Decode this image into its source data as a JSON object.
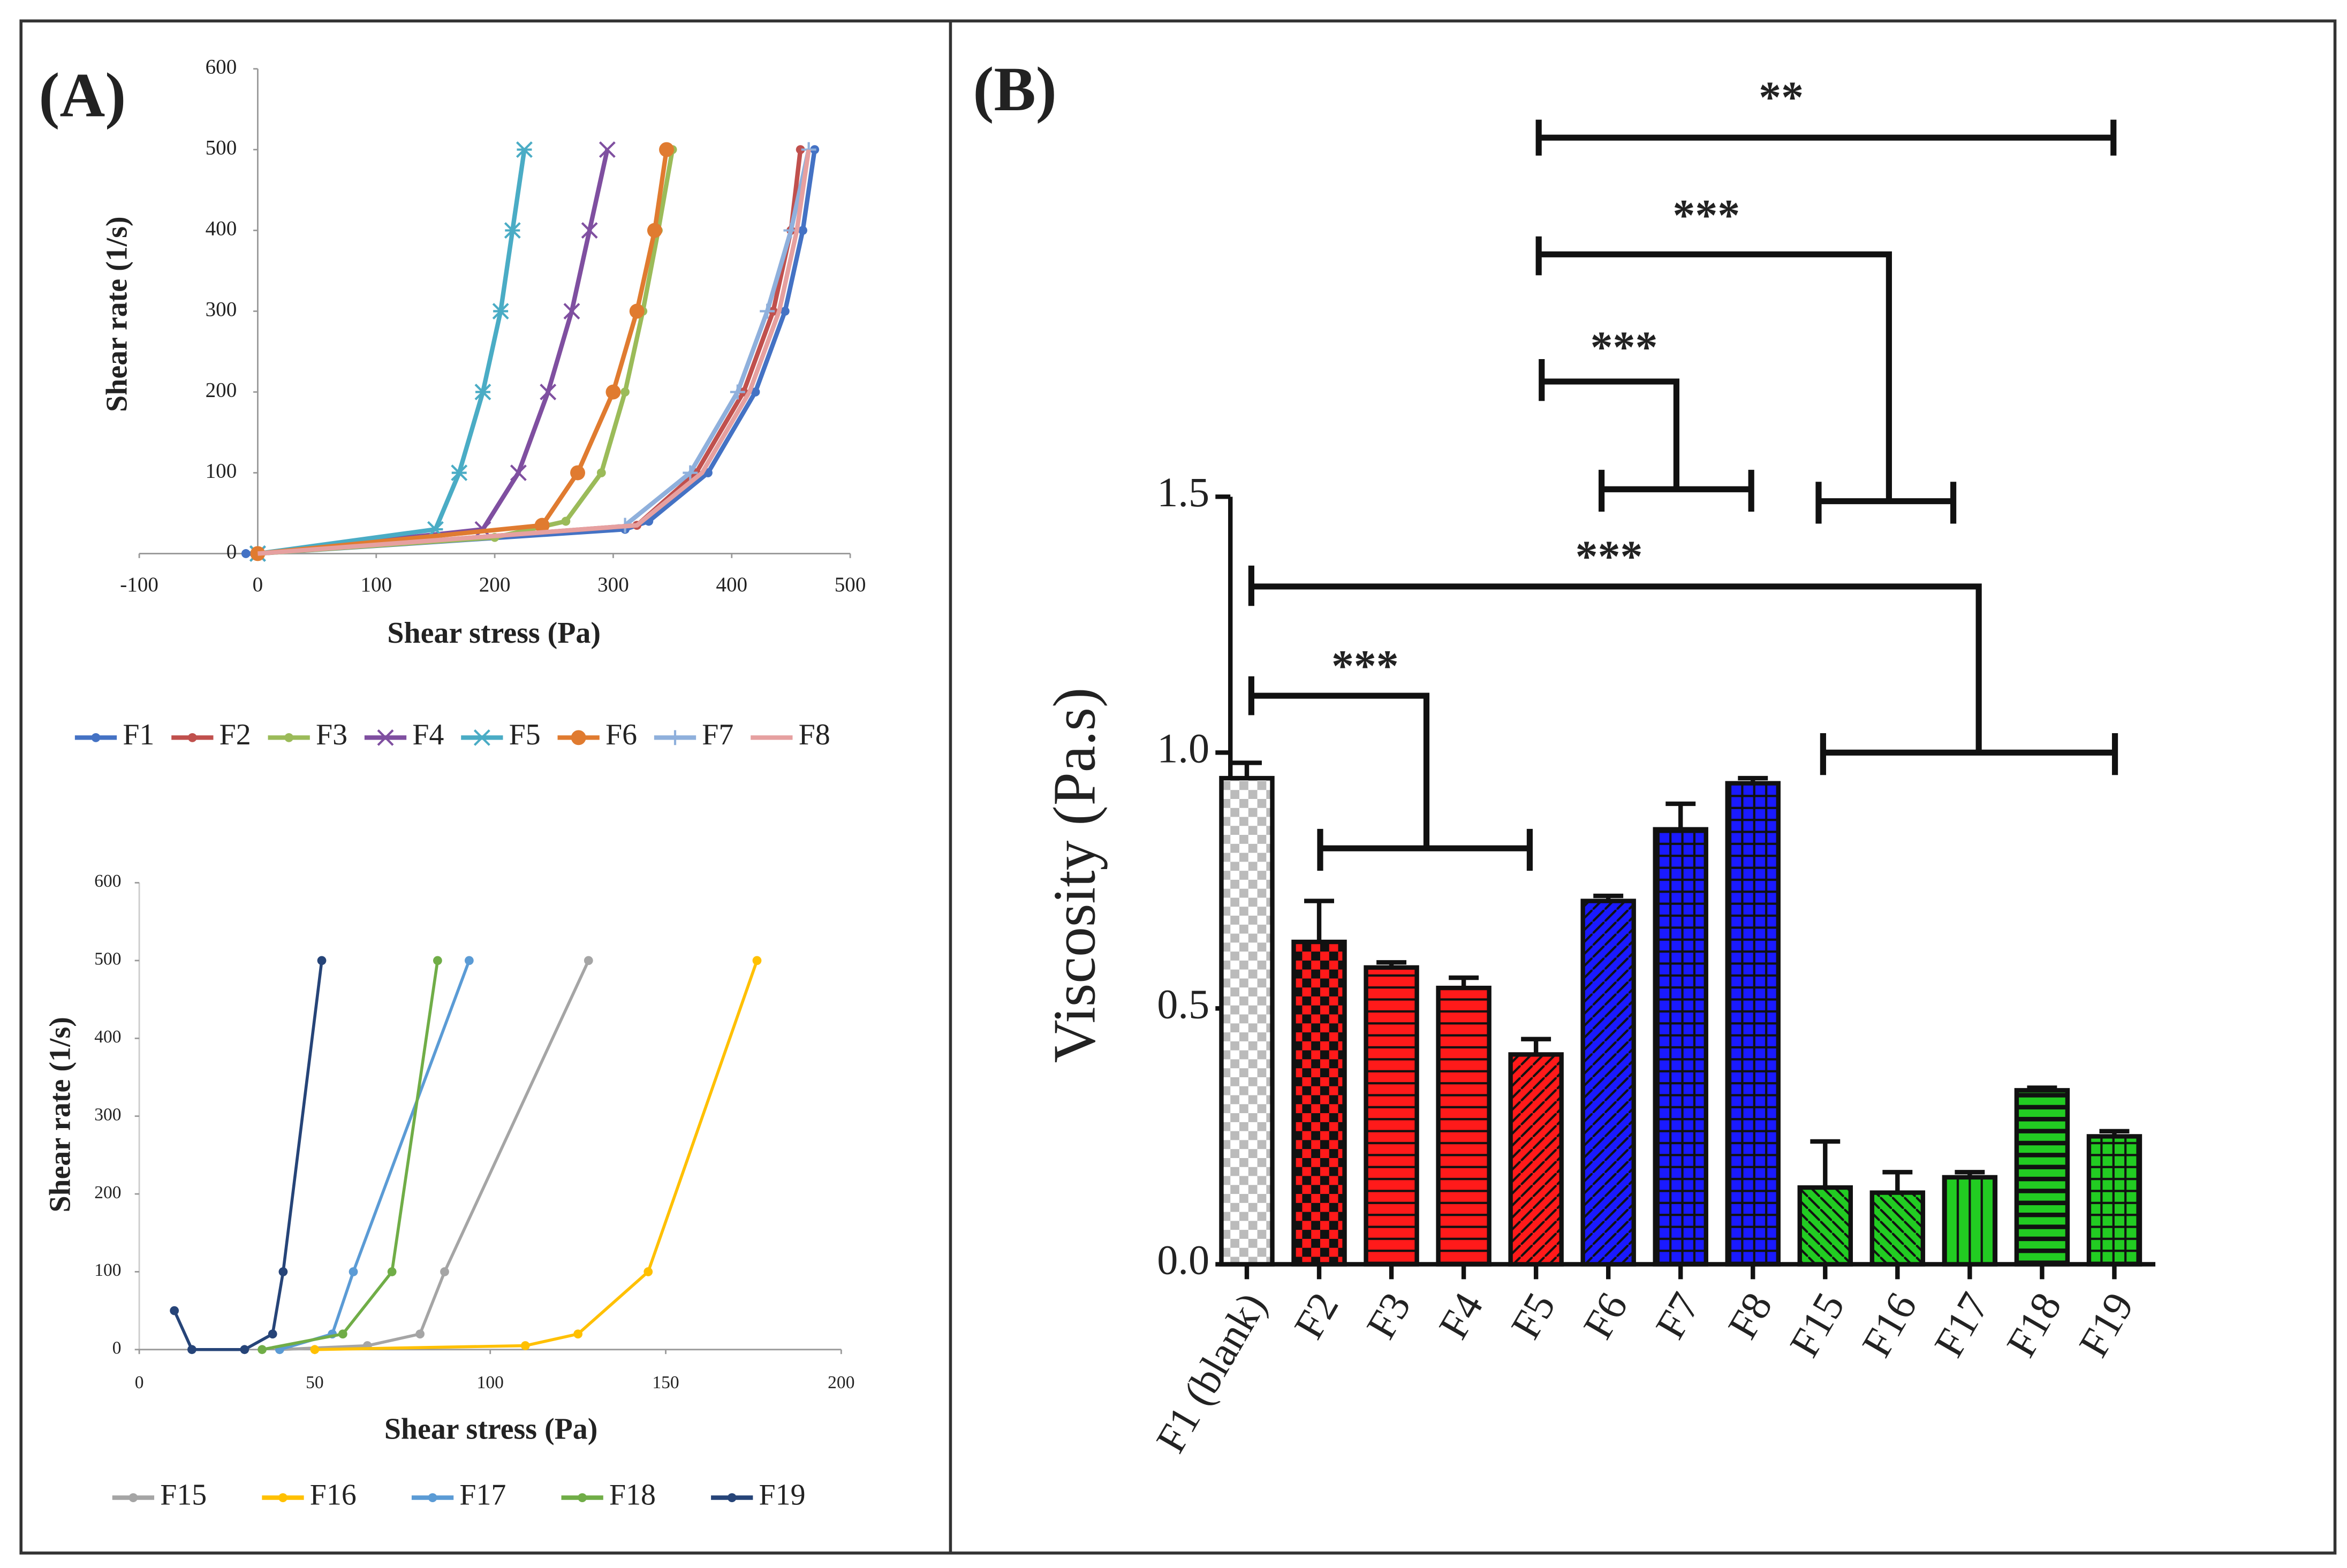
{
  "panels": [
    "(A)",
    "(B)"
  ],
  "chart_data": [
    {
      "type": "line",
      "xlabel": "Shear stress (Pa)",
      "ylabel": "Shear rate (1/s)",
      "xlim": [
        -100,
        500
      ],
      "xticks": [
        -100,
        0,
        100,
        200,
        300,
        400,
        500
      ],
      "ylim": [
        0,
        600
      ],
      "yticks": [
        0,
        100,
        200,
        300,
        400,
        500,
        600
      ],
      "series": [
        {
          "name": "F1",
          "color": "#4472c4",
          "marker": "circle",
          "x": [
            -10,
            0,
            310,
            330,
            380,
            420,
            445,
            460,
            470
          ],
          "values": [
            0,
            0,
            30,
            40,
            100,
            200,
            300,
            400,
            500
          ]
        },
        {
          "name": "F2",
          "color": "#c0504d",
          "marker": "circle",
          "x": [
            0,
            320,
            370,
            410,
            435,
            450,
            458
          ],
          "values": [
            0,
            35,
            100,
            200,
            300,
            400,
            500
          ]
        },
        {
          "name": "F3",
          "color": "#9bbb59",
          "marker": "circle",
          "x": [
            0,
            200,
            260,
            290,
            310,
            325,
            338,
            350
          ],
          "values": [
            0,
            20,
            40,
            100,
            200,
            300,
            400,
            500
          ]
        },
        {
          "name": "F4",
          "color": "#7f4fa0",
          "marker": "x",
          "x": [
            0,
            190,
            220,
            245,
            265,
            280,
            295
          ],
          "values": [
            0,
            30,
            100,
            200,
            300,
            400,
            500
          ]
        },
        {
          "name": "F5",
          "color": "#4aacc5",
          "marker": "star",
          "x": [
            0,
            150,
            170,
            190,
            205,
            215,
            225
          ],
          "values": [
            0,
            30,
            100,
            200,
            300,
            400,
            500
          ]
        },
        {
          "name": "F6",
          "color": "#e07b30",
          "marker": "dot",
          "x": [
            0,
            240,
            270,
            300,
            320,
            335,
            345
          ],
          "values": [
            0,
            35,
            100,
            200,
            300,
            400,
            500
          ]
        },
        {
          "name": "F7",
          "color": "#8fb0dc",
          "marker": "plus",
          "x": [
            310,
            365,
            405,
            430,
            450,
            465
          ],
          "values": [
            35,
            100,
            200,
            300,
            400,
            500
          ]
        },
        {
          "name": "F8",
          "color": "#e6a0a0",
          "marker": "none",
          "x": [
            0,
            320,
            375,
            415,
            440,
            455,
            465
          ],
          "values": [
            0,
            35,
            100,
            200,
            300,
            400,
            500
          ]
        }
      ]
    },
    {
      "type": "line",
      "xlabel": "Shear stress (Pa)",
      "ylabel": "Shear rate (1/s)",
      "xlim": [
        0,
        200
      ],
      "xticks": [
        0,
        50,
        100,
        150,
        200
      ],
      "ylim": [
        0,
        600
      ],
      "yticks": [
        0,
        100,
        200,
        300,
        400,
        500,
        600
      ],
      "series": [
        {
          "name": "F15",
          "color": "#a5a5a5",
          "marker": "circle",
          "x": [
            40,
            65,
            80,
            87,
            128
          ],
          "values": [
            0,
            5,
            20,
            100,
            500
          ]
        },
        {
          "name": "F16",
          "color": "#ffc000",
          "marker": "circle",
          "x": [
            50,
            110,
            125,
            145,
            176
          ],
          "values": [
            0,
            5,
            20,
            100,
            500
          ]
        },
        {
          "name": "F17",
          "color": "#5b9bd5",
          "marker": "circle",
          "x": [
            40,
            55,
            61,
            94
          ],
          "values": [
            0,
            20,
            100,
            500
          ]
        },
        {
          "name": "F18",
          "color": "#70ad47",
          "marker": "circle",
          "x": [
            35,
            58,
            72,
            85
          ],
          "values": [
            0,
            20,
            100,
            500
          ]
        },
        {
          "name": "F19",
          "color": "#264478",
          "marker": "circle",
          "x": [
            10,
            15,
            30,
            38,
            41,
            52
          ],
          "values": [
            50,
            0,
            0,
            20,
            100,
            500
          ]
        }
      ]
    },
    {
      "type": "bar",
      "ylabel": "Viscosity (Pa.s)",
      "categories": [
        "F1 (blank)",
        "F2",
        "F3",
        "F4",
        "F5",
        "F6",
        "F7",
        "F8",
        "F15",
        "F16",
        "F17",
        "F18",
        "F19"
      ],
      "values": [
        0.95,
        0.63,
        0.58,
        0.54,
        0.41,
        0.71,
        0.85,
        0.94,
        0.15,
        0.14,
        0.17,
        0.34,
        0.25
      ],
      "errors": [
        0.03,
        0.08,
        0.01,
        0.02,
        0.03,
        0.01,
        0.05,
        0.01,
        0.09,
        0.04,
        0.01,
        0.005,
        0.01
      ],
      "colors": [
        "#bbbbbb",
        "#ff1a1a",
        "#ff1a1a",
        "#ff1a1a",
        "#ff1a1a",
        "#1a1aff",
        "#1a1aff",
        "#1a1aff",
        "#22cc22",
        "#22cc22",
        "#22cc22",
        "#22cc22",
        "#22cc22"
      ],
      "ylim": [
        0,
        1.5
      ],
      "yticks": [
        {
          "value": 0,
          "label": "0.0"
        },
        0.5,
        {
          "value": 1,
          "label": "1.0"
        },
        1.5
      ],
      "annotations": [
        "**",
        "***",
        "***",
        "***",
        "***"
      ]
    }
  ]
}
